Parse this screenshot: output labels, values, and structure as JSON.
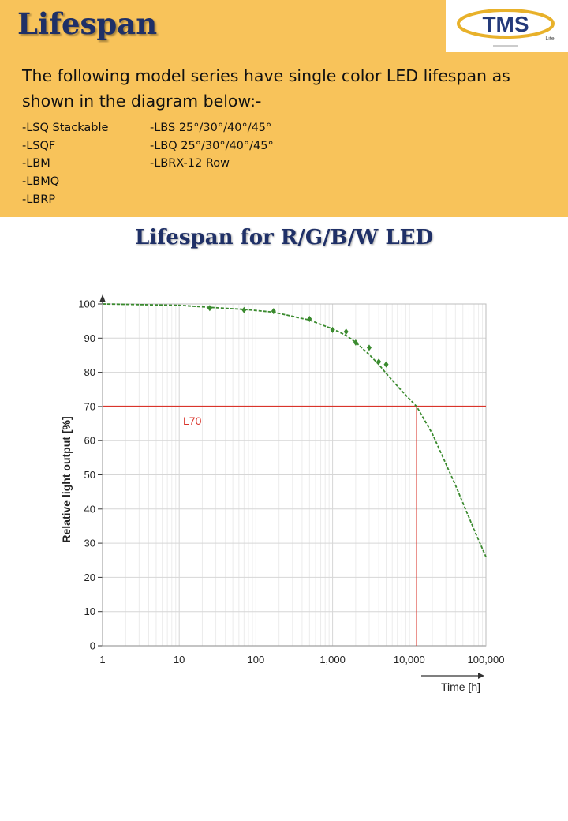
{
  "header": {
    "title": "Lifespan",
    "logo_text": "TMS",
    "logo_subtext": "Lite"
  },
  "intro": "The following model series have single color LED lifespan as shown in the diagram below:-",
  "model_series": {
    "column1": [
      "-LSQ Stackable",
      "-LSQF",
      "-LBM",
      "-LBMQ",
      "-LBRP"
    ],
    "column2": [
      "-LBS 25°/30°/40°/45°",
      "-LBQ 25°/30°/40°/45°",
      "-LBRX-12 Row"
    ]
  },
  "chart_heading": "Lifespan for R/G/B/W LED",
  "colors": {
    "banner": "#f8c35a",
    "title": "#1f3067",
    "curve": "#3a8a2e",
    "threshold": "#d9342b",
    "grid": "#d6d6d6"
  },
  "chart_data": {
    "type": "line",
    "xscale": "log",
    "xlim": [
      1,
      100000
    ],
    "ylim": [
      0,
      100
    ],
    "xlabel": "Time [h]",
    "ylabel": "Relative light output [%]",
    "xticks": [
      "1",
      "10",
      "100",
      "1,000",
      "10,000",
      "100,000"
    ],
    "yticks": [
      "0",
      "10",
      "20",
      "30",
      "40",
      "50",
      "60",
      "70",
      "80",
      "90",
      "100"
    ],
    "grid": true,
    "series": [
      {
        "style": "dashed",
        "x": [
          1,
          10,
          25,
          70,
          170,
          500,
          1000,
          1500,
          2000,
          3000,
          4000,
          5000,
          8000,
          12500,
          20000,
          40000,
          70000,
          100000
        ],
        "y": [
          100,
          99.6,
          99,
          98.4,
          97.6,
          95.3,
          92.7,
          90.8,
          88.8,
          85.2,
          82.3,
          79.7,
          74.5,
          70,
          62,
          47,
          34,
          26
        ]
      }
    ],
    "measured_points": {
      "x": [
        25,
        70,
        170,
        500,
        1000,
        1500,
        2000,
        3000,
        4000,
        5000
      ],
      "y": [
        98.8,
        98.2,
        97.9,
        95.6,
        92.4,
        91.9,
        88.7,
        87.2,
        83.1,
        82.3
      ]
    },
    "threshold": {
      "label": "L70",
      "y": 70,
      "x_at_threshold": 12500
    }
  }
}
